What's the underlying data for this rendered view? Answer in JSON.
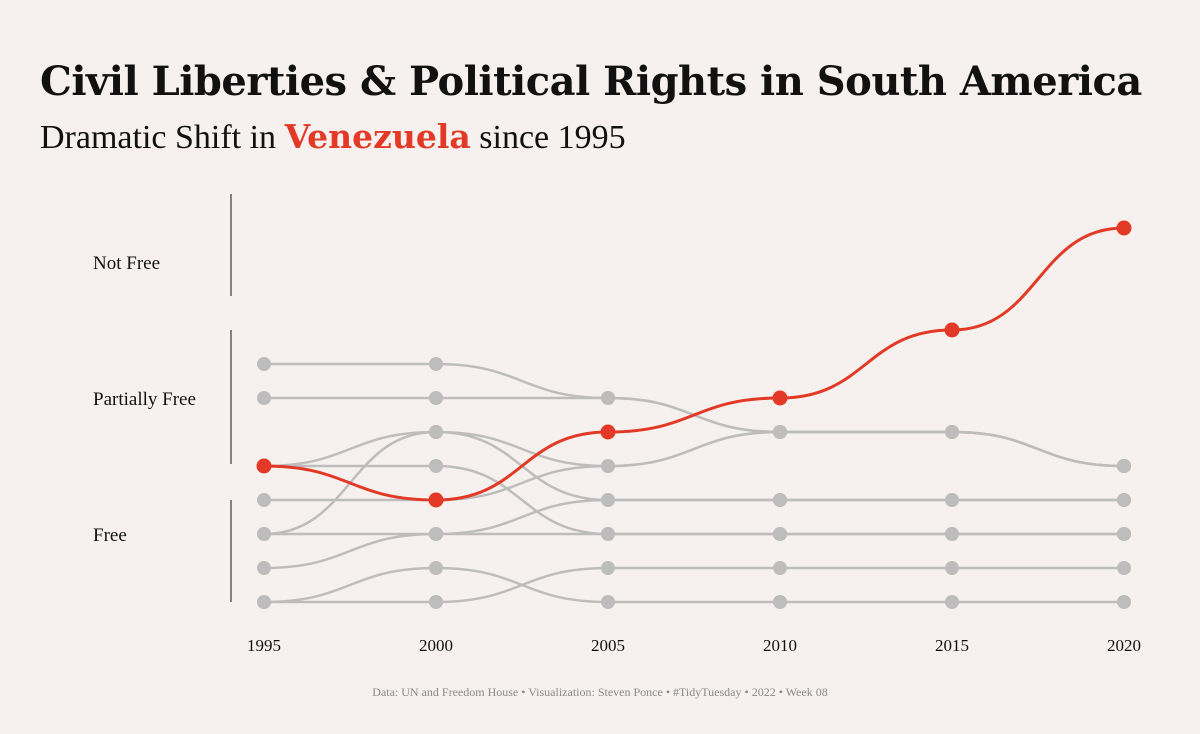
{
  "title": "Civil Liberties & Political Rights in South America",
  "subtitle": {
    "prefix": "Dramatic Shift in",
    "highlight": "Venezuela",
    "suffix": "since 1995"
  },
  "caption": "Data: UN and Freedom House • Visualization: Steven Ponce • #TidyTuesday • 2022 • Week 08",
  "colors": {
    "background": "#f6f1ef",
    "highlight": "#e23a26",
    "muted": "#bdbdbd",
    "text": "#111111"
  },
  "chart_data": {
    "type": "line",
    "x": [
      1995,
      2000,
      2005,
      2010,
      2015,
      2020
    ],
    "xlabel": "",
    "ylabel": "",
    "y_categories": [
      "Free",
      "Partially Free",
      "Not Free"
    ],
    "y_rank_range": [
      1,
      11
    ],
    "highlight_series": "Venezuela",
    "series": [
      {
        "name": "Venezuela",
        "values": [
          5,
          4,
          6,
          7,
          9,
          12
        ]
      },
      {
        "values": [
          1,
          1,
          2,
          2,
          2,
          2
        ]
      },
      {
        "values": [
          1,
          2,
          1,
          1,
          1,
          1
        ]
      },
      {
        "values": [
          2,
          3,
          3,
          3,
          3,
          3
        ]
      },
      {
        "values": [
          3,
          6,
          4,
          4,
          4,
          4
        ]
      },
      {
        "values": [
          3,
          3,
          4,
          4,
          4,
          4
        ]
      },
      {
        "values": [
          4,
          4,
          5,
          6,
          6,
          5
        ]
      },
      {
        "values": [
          5,
          6,
          5,
          6,
          6,
          5
        ]
      },
      {
        "values": [
          5,
          5,
          3,
          3,
          3,
          3
        ]
      },
      {
        "values": [
          7,
          7,
          7,
          6,
          6,
          5
        ]
      },
      {
        "values": [
          8,
          8,
          7,
          6,
          6,
          5
        ]
      }
    ]
  }
}
